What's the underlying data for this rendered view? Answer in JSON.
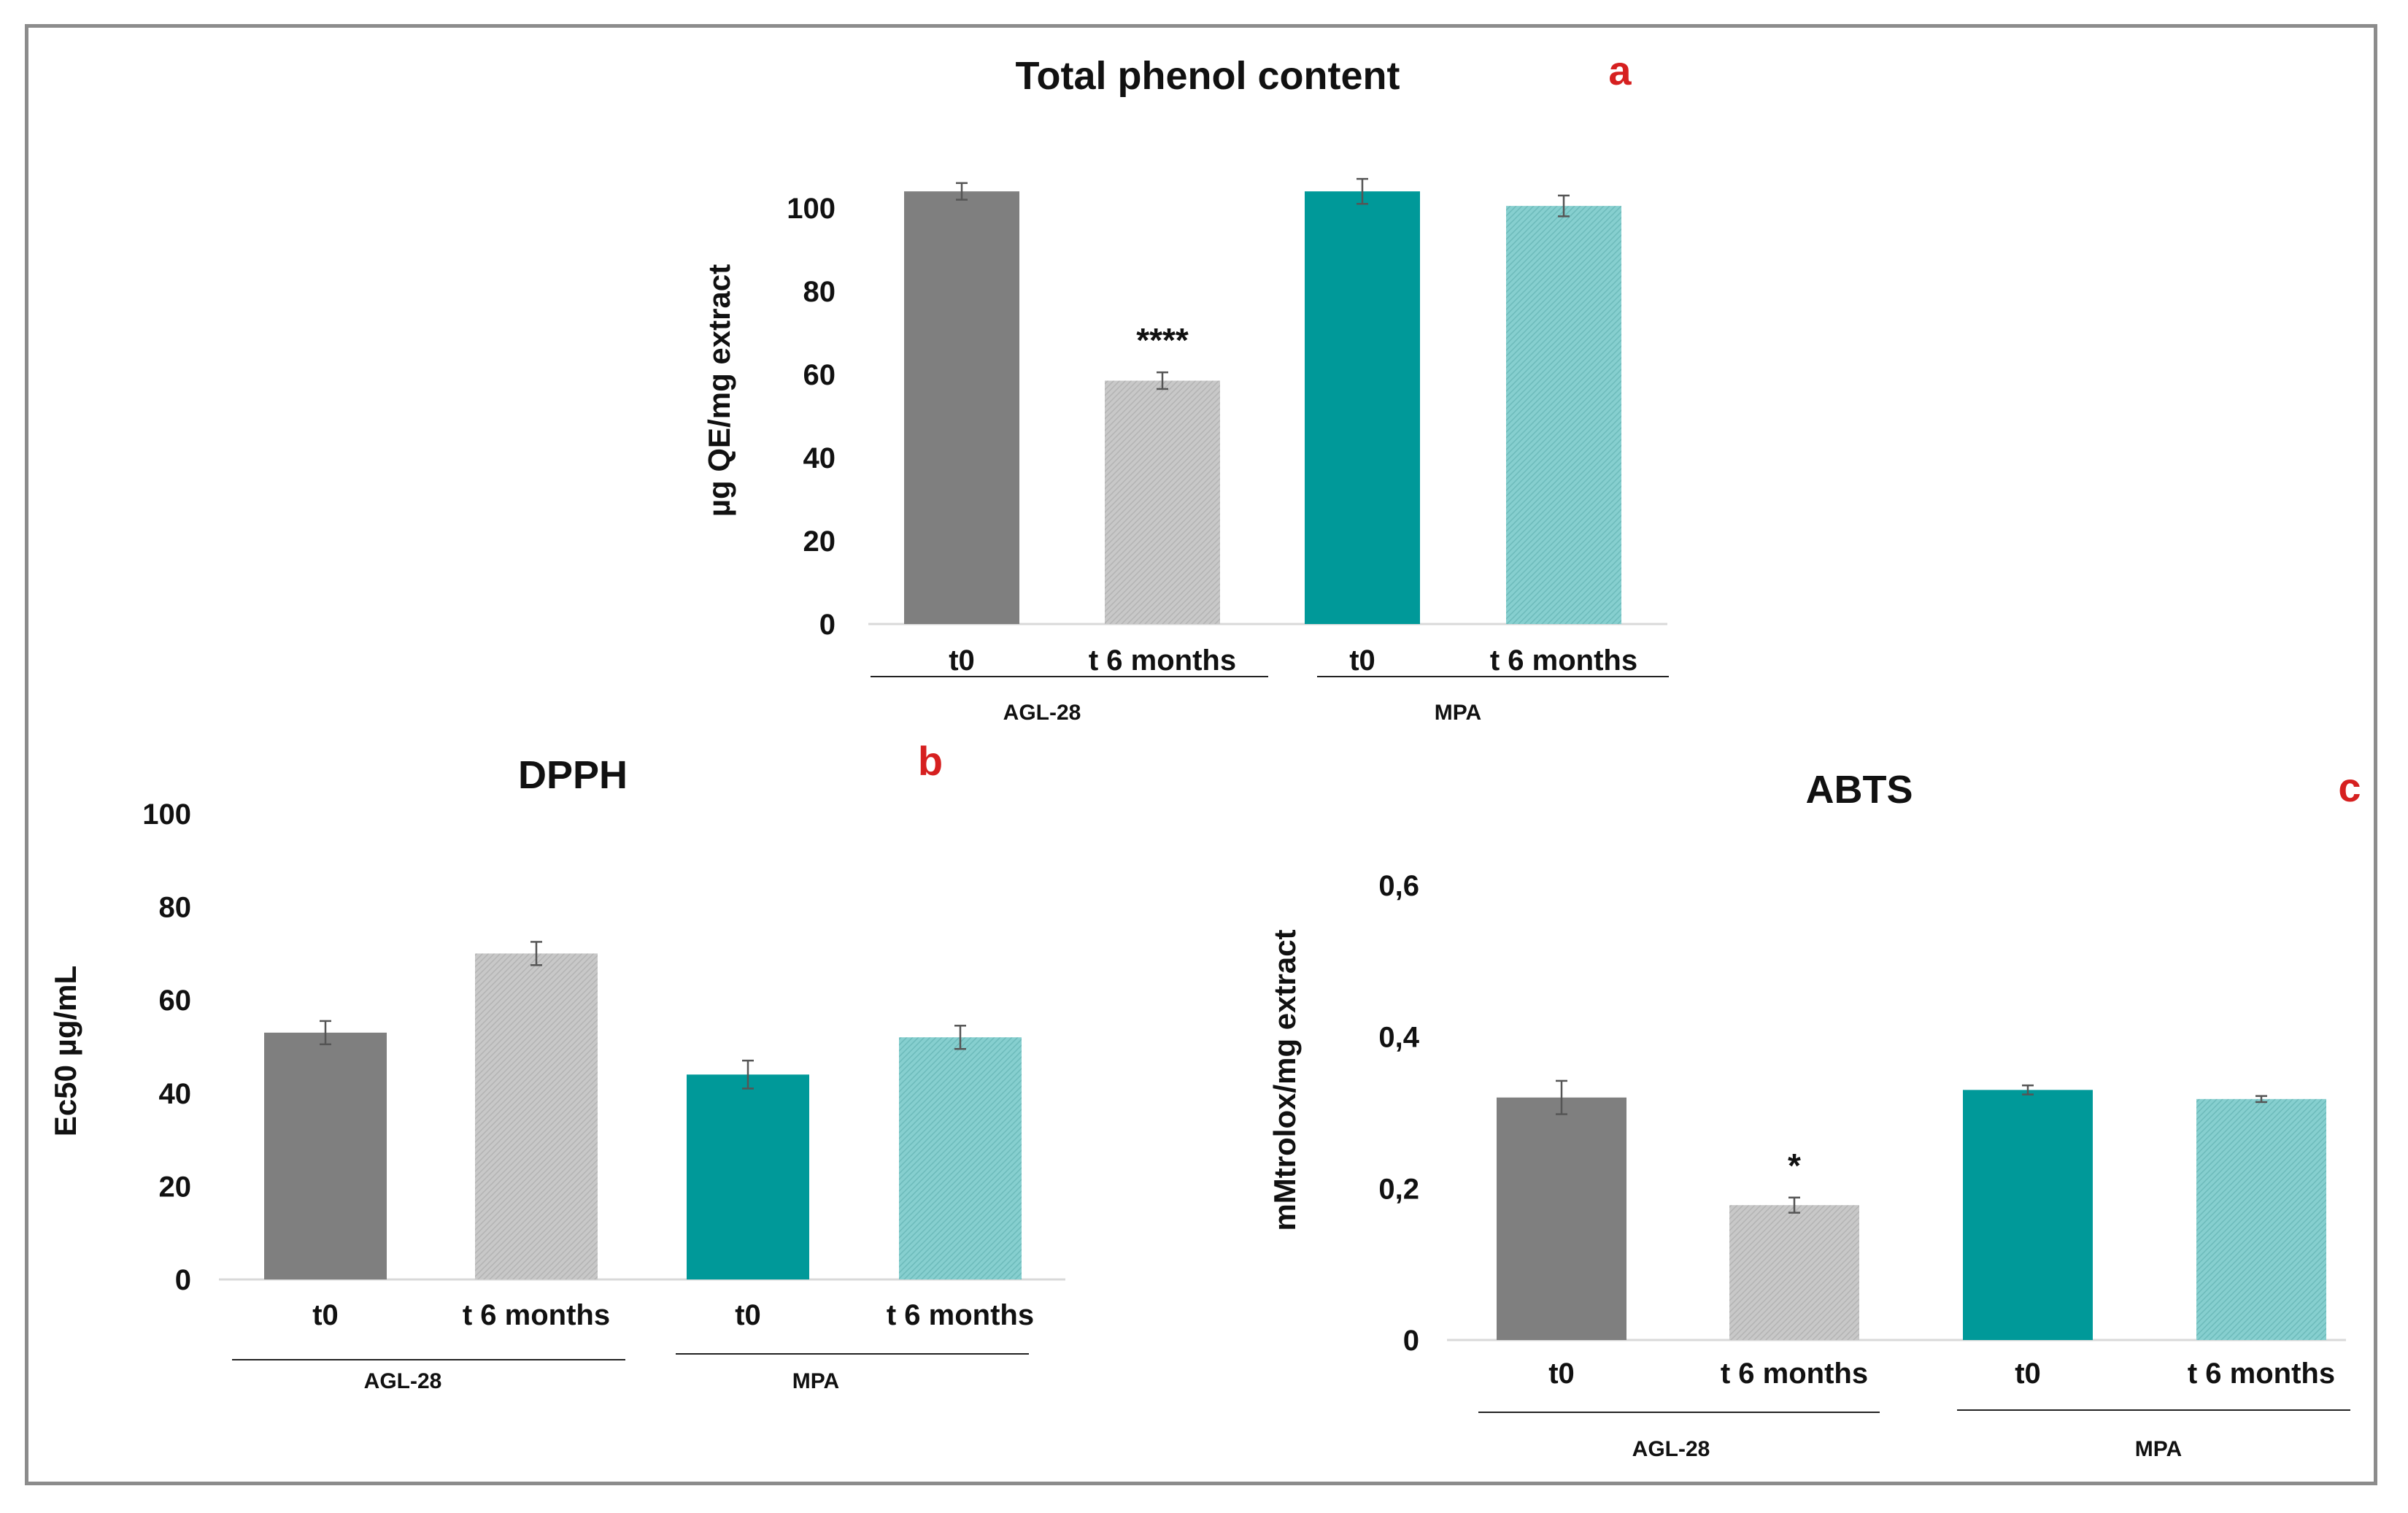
{
  "colors": {
    "agl_t0": "#7f7f7f",
    "agl_t6": "#c5c5c5",
    "mpa_t0": "#009999",
    "mpa_t6": "#7fcccc",
    "panel_letter": "#d62020",
    "frame": "#8c8c8c"
  },
  "chart_data": [
    {
      "id": "a",
      "type": "bar",
      "panel_letter": "a",
      "title": "Total phenol content",
      "ylabel": "µg QE/mg extract",
      "ylim": [
        0,
        100
      ],
      "yticks": [
        "0",
        "20",
        "40",
        "60",
        "80",
        "100"
      ],
      "categories": [
        "t0",
        "t 6 months",
        "t0",
        "t 6 months"
      ],
      "groups": [
        {
          "name": "AGL-28",
          "members": [
            0,
            1
          ]
        },
        {
          "name": "MPA",
          "members": [
            2,
            3
          ]
        }
      ],
      "values": [
        104,
        58.5,
        104,
        100.5
      ],
      "errors": [
        2,
        2,
        3,
        2.5
      ],
      "significance": [
        "",
        "****",
        "",
        ""
      ]
    },
    {
      "id": "b",
      "type": "bar",
      "panel_letter": "b",
      "title": "DPPH",
      "ylabel": "Ec50 µg/mL",
      "ylim": [
        0,
        100
      ],
      "yticks": [
        "0",
        "20",
        "40",
        "60",
        "80",
        "100"
      ],
      "categories": [
        "t0",
        "t 6 months",
        "t0",
        "t 6 months"
      ],
      "groups": [
        {
          "name": "AGL-28",
          "members": [
            0,
            1
          ]
        },
        {
          "name": "MPA",
          "members": [
            2,
            3
          ]
        }
      ],
      "values": [
        53,
        70,
        44,
        52
      ],
      "errors": [
        2.5,
        2.5,
        3,
        2.5
      ],
      "significance": [
        "",
        "",
        "",
        ""
      ]
    },
    {
      "id": "c",
      "type": "bar",
      "panel_letter": "c",
      "title": "ABTS",
      "ylabel": "mMtrolox/mg  extract",
      "ylim": [
        0,
        0.6
      ],
      "yticks": [
        "0",
        "0,2",
        "0,4",
        "0,6"
      ],
      "categories": [
        "t0",
        "t 6 months",
        "t0",
        "t 6 months"
      ],
      "groups": [
        {
          "name": "AGL-28",
          "members": [
            0,
            1
          ]
        },
        {
          "name": "MPA",
          "members": [
            2,
            3
          ]
        }
      ],
      "values": [
        0.32,
        0.178,
        0.33,
        0.318
      ],
      "errors": [
        0.022,
        0.01,
        0.006,
        0.004
      ],
      "significance": [
        "",
        "*",
        "",
        ""
      ]
    }
  ]
}
